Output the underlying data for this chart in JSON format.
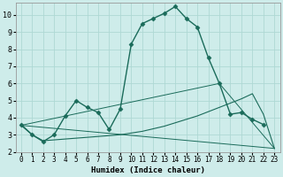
{
  "xlabel": "Humidex (Indice chaleur)",
  "background_color": "#ceecea",
  "line_color": "#1a6b5a",
  "grid_color": "#aed8d4",
  "xlim": [
    -0.5,
    23.5
  ],
  "ylim": [
    2,
    10.7
  ],
  "yticks": [
    2,
    3,
    4,
    5,
    6,
    7,
    8,
    9,
    10
  ],
  "xticks": [
    0,
    1,
    2,
    3,
    4,
    5,
    6,
    7,
    8,
    9,
    10,
    11,
    12,
    13,
    14,
    15,
    16,
    17,
    18,
    19,
    20,
    21,
    22,
    23
  ],
  "series": [
    {
      "x": [
        0,
        1,
        2,
        3,
        4,
        5,
        6,
        7,
        8,
        9,
        10,
        11,
        12,
        13,
        14,
        15,
        16,
        17,
        18,
        19,
        20,
        21,
        22
      ],
      "y": [
        3.6,
        3.0,
        2.6,
        3.0,
        4.1,
        5.0,
        4.6,
        4.3,
        3.3,
        4.5,
        8.3,
        9.5,
        9.8,
        10.1,
        10.5,
        9.8,
        9.3,
        7.5,
        6.0,
        4.2,
        4.3,
        3.9,
        3.6
      ],
      "marker": "D",
      "markersize": 2.5,
      "linewidth": 1.0
    },
    {
      "x": [
        0,
        1,
        2,
        3,
        4,
        5,
        6,
        7,
        8,
        9,
        10,
        11,
        12,
        13,
        14,
        15,
        16,
        17,
        18,
        19,
        20,
        21,
        22,
        23
      ],
      "y": [
        3.55,
        3.0,
        2.65,
        2.7,
        2.75,
        2.8,
        2.85,
        2.9,
        2.95,
        3.0,
        3.1,
        3.2,
        3.35,
        3.5,
        3.7,
        3.9,
        4.1,
        4.35,
        4.6,
        4.85,
        5.1,
        5.4,
        4.2,
        2.2
      ],
      "marker": null,
      "markersize": 0,
      "linewidth": 0.8
    },
    {
      "x": [
        0,
        23
      ],
      "y": [
        3.55,
        2.2
      ],
      "marker": null,
      "markersize": 0,
      "linewidth": 0.7
    },
    {
      "x": [
        0,
        18,
        23
      ],
      "y": [
        3.55,
        6.0,
        2.2
      ],
      "marker": null,
      "markersize": 0,
      "linewidth": 0.7
    }
  ]
}
